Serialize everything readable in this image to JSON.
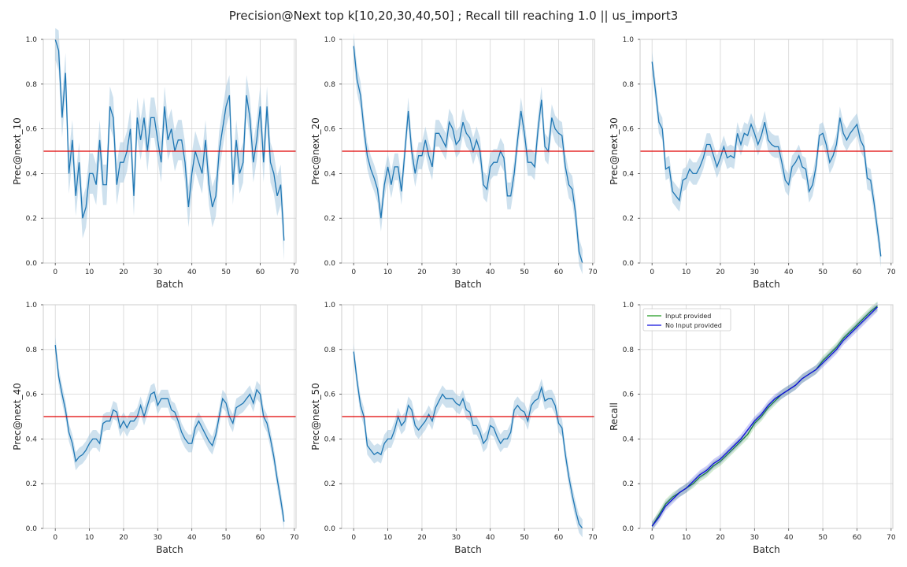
{
  "figure": {
    "title": "Precision@Next top k[10,20,30,40,50] ; Recall till reaching 1.0 || us_import3",
    "colors": {
      "line": "#1f77b4",
      "band": "#a6c8e0",
      "threshold": "#e00000",
      "grid": "#d5d5d5",
      "spine": "#cccccc",
      "recall_input": "#1f9a1f",
      "recall_noinput": "#0d0ddd"
    }
  },
  "chart_data": [
    {
      "type": "line",
      "xlabel": "Batch",
      "ylabel": "Prec@next_10",
      "xlim": [
        -3.5,
        70.5
      ],
      "ylim": [
        0,
        1.0
      ],
      "xticks": [
        0,
        10,
        20,
        30,
        40,
        50,
        60,
        70
      ],
      "xtick_labels": [
        "0",
        "10",
        "20",
        "30",
        "40",
        "50",
        "60",
        "70"
      ],
      "yticks": [
        0,
        0.2,
        0.4,
        0.6,
        0.8,
        1.0
      ],
      "ytick_labels": [
        "0.0",
        "0.2",
        "0.4",
        "0.6",
        "0.8",
        "1.0"
      ],
      "grid": true,
      "hline": 0.5,
      "series": [
        {
          "x": [
            0,
            1,
            2,
            3,
            4,
            5,
            6,
            7,
            8,
            9,
            10,
            11,
            12,
            13,
            14,
            15,
            16,
            17,
            18,
            19,
            20,
            21,
            22,
            23,
            24,
            25,
            26,
            27,
            28,
            29,
            30,
            31,
            32,
            33,
            34,
            35,
            36,
            37,
            38,
            39,
            40,
            41,
            42,
            43,
            44,
            45,
            46,
            47,
            48,
            49,
            50,
            51,
            52,
            53,
            54,
            55,
            56,
            57,
            58,
            59,
            60,
            61,
            62,
            63,
            64,
            65,
            66,
            67
          ],
          "y": [
            1.0,
            0.95,
            0.65,
            0.85,
            0.4,
            0.55,
            0.3,
            0.45,
            0.2,
            0.25,
            0.4,
            0.4,
            0.35,
            0.55,
            0.35,
            0.35,
            0.7,
            0.65,
            0.35,
            0.45,
            0.45,
            0.5,
            0.6,
            0.3,
            0.65,
            0.55,
            0.65,
            0.5,
            0.65,
            0.65,
            0.55,
            0.45,
            0.7,
            0.55,
            0.6,
            0.5,
            0.55,
            0.55,
            0.45,
            0.25,
            0.4,
            0.5,
            0.45,
            0.4,
            0.55,
            0.35,
            0.25,
            0.3,
            0.5,
            0.6,
            0.7,
            0.75,
            0.35,
            0.55,
            0.4,
            0.45,
            0.75,
            0.65,
            0.45,
            0.55,
            0.7,
            0.45,
            0.7,
            0.45,
            0.4,
            0.3,
            0.35,
            0.1
          ],
          "band": 0.09
        }
      ]
    },
    {
      "type": "line",
      "xlabel": "Batch",
      "ylabel": "Prec@next_20",
      "xlim": [
        -3.5,
        70.5
      ],
      "ylim": [
        0,
        1.0
      ],
      "xticks": [
        0,
        10,
        20,
        30,
        40,
        50,
        60,
        70
      ],
      "xtick_labels": [
        "0",
        "10",
        "20",
        "30",
        "40",
        "50",
        "60",
        "70"
      ],
      "yticks": [
        0,
        0.2,
        0.4,
        0.6,
        0.8,
        1.0
      ],
      "ytick_labels": [
        "0.0",
        "0.2",
        "0.4",
        "0.6",
        "0.8",
        "1.0"
      ],
      "grid": true,
      "hline": 0.5,
      "series": [
        {
          "x": [
            0,
            1,
            2,
            3,
            4,
            5,
            6,
            7,
            8,
            9,
            10,
            11,
            12,
            13,
            14,
            15,
            16,
            17,
            18,
            19,
            20,
            21,
            22,
            23,
            24,
            25,
            26,
            27,
            28,
            29,
            30,
            31,
            32,
            33,
            34,
            35,
            36,
            37,
            38,
            39,
            40,
            41,
            42,
            43,
            44,
            45,
            46,
            47,
            48,
            49,
            50,
            51,
            52,
            53,
            54,
            55,
            56,
            57,
            58,
            59,
            60,
            61,
            62,
            63,
            64,
            65,
            66,
            67
          ],
          "y": [
            0.97,
            0.82,
            0.75,
            0.6,
            0.48,
            0.42,
            0.38,
            0.33,
            0.2,
            0.35,
            0.43,
            0.35,
            0.43,
            0.43,
            0.32,
            0.5,
            0.68,
            0.5,
            0.4,
            0.48,
            0.48,
            0.55,
            0.48,
            0.43,
            0.58,
            0.58,
            0.55,
            0.52,
            0.63,
            0.6,
            0.53,
            0.55,
            0.63,
            0.58,
            0.56,
            0.5,
            0.55,
            0.5,
            0.35,
            0.33,
            0.43,
            0.45,
            0.45,
            0.5,
            0.47,
            0.3,
            0.3,
            0.4,
            0.55,
            0.68,
            0.58,
            0.45,
            0.45,
            0.43,
            0.6,
            0.73,
            0.52,
            0.5,
            0.65,
            0.6,
            0.58,
            0.57,
            0.43,
            0.35,
            0.33,
            0.22,
            0.05,
            0.0
          ],
          "band": 0.06
        }
      ]
    },
    {
      "type": "line",
      "xlabel": "Batch",
      "ylabel": "Prec@next_30",
      "xlim": [
        -3.5,
        70.5
      ],
      "ylim": [
        0,
        1.0
      ],
      "xticks": [
        0,
        10,
        20,
        30,
        40,
        50,
        60,
        70
      ],
      "xtick_labels": [
        "0",
        "10",
        "20",
        "30",
        "40",
        "50",
        "60",
        "70"
      ],
      "yticks": [
        0,
        0.2,
        0.4,
        0.6,
        0.8,
        1.0
      ],
      "ytick_labels": [
        "0.0",
        "0.2",
        "0.4",
        "0.6",
        "0.8",
        "1.0"
      ],
      "grid": true,
      "hline": 0.5,
      "series": [
        {
          "x": [
            0,
            1,
            2,
            3,
            4,
            5,
            6,
            7,
            8,
            9,
            10,
            11,
            12,
            13,
            14,
            15,
            16,
            17,
            18,
            19,
            20,
            21,
            22,
            23,
            24,
            25,
            26,
            27,
            28,
            29,
            30,
            31,
            32,
            33,
            34,
            35,
            36,
            37,
            38,
            39,
            40,
            41,
            42,
            43,
            44,
            45,
            46,
            47,
            48,
            49,
            50,
            51,
            52,
            53,
            54,
            55,
            56,
            57,
            58,
            59,
            60,
            61,
            62,
            63,
            64,
            65,
            66,
            67
          ],
          "y": [
            0.9,
            0.77,
            0.63,
            0.6,
            0.42,
            0.43,
            0.32,
            0.3,
            0.28,
            0.37,
            0.38,
            0.42,
            0.4,
            0.4,
            0.43,
            0.47,
            0.53,
            0.53,
            0.48,
            0.43,
            0.47,
            0.52,
            0.47,
            0.48,
            0.47,
            0.58,
            0.53,
            0.58,
            0.57,
            0.62,
            0.58,
            0.53,
            0.57,
            0.63,
            0.55,
            0.53,
            0.52,
            0.52,
            0.45,
            0.37,
            0.35,
            0.43,
            0.45,
            0.48,
            0.43,
            0.42,
            0.32,
            0.35,
            0.43,
            0.57,
            0.58,
            0.53,
            0.45,
            0.48,
            0.53,
            0.65,
            0.58,
            0.55,
            0.58,
            0.6,
            0.62,
            0.55,
            0.52,
            0.38,
            0.37,
            0.27,
            0.15,
            0.03
          ],
          "band": 0.05
        }
      ]
    },
    {
      "type": "line",
      "xlabel": "Batch",
      "ylabel": "Prec@next_40",
      "xlim": [
        -3.5,
        70.5
      ],
      "ylim": [
        0,
        1.0
      ],
      "xticks": [
        0,
        10,
        20,
        30,
        40,
        50,
        60,
        70
      ],
      "xtick_labels": [
        "0",
        "10",
        "20",
        "30",
        "40",
        "50",
        "60",
        "70"
      ],
      "yticks": [
        0,
        0.2,
        0.4,
        0.6,
        0.8,
        1.0
      ],
      "ytick_labels": [
        "0.0",
        "0.2",
        "0.4",
        "0.6",
        "0.8",
        "1.0"
      ],
      "grid": true,
      "hline": 0.5,
      "series": [
        {
          "x": [
            0,
            1,
            2,
            3,
            4,
            5,
            6,
            7,
            8,
            9,
            10,
            11,
            12,
            13,
            14,
            15,
            16,
            17,
            18,
            19,
            20,
            21,
            22,
            23,
            24,
            25,
            26,
            27,
            28,
            29,
            30,
            31,
            32,
            33,
            34,
            35,
            36,
            37,
            38,
            39,
            40,
            41,
            42,
            43,
            44,
            45,
            46,
            47,
            48,
            49,
            50,
            51,
            52,
            53,
            54,
            55,
            56,
            57,
            58,
            59,
            60,
            61,
            62,
            63,
            64,
            65,
            66,
            67
          ],
          "y": [
            0.82,
            0.68,
            0.6,
            0.53,
            0.43,
            0.38,
            0.3,
            0.32,
            0.33,
            0.35,
            0.38,
            0.4,
            0.4,
            0.38,
            0.47,
            0.48,
            0.48,
            0.53,
            0.52,
            0.45,
            0.48,
            0.45,
            0.48,
            0.48,
            0.5,
            0.55,
            0.5,
            0.55,
            0.6,
            0.61,
            0.55,
            0.58,
            0.58,
            0.58,
            0.53,
            0.52,
            0.48,
            0.43,
            0.4,
            0.38,
            0.38,
            0.45,
            0.48,
            0.45,
            0.42,
            0.39,
            0.37,
            0.42,
            0.5,
            0.58,
            0.56,
            0.5,
            0.47,
            0.54,
            0.55,
            0.56,
            0.58,
            0.6,
            0.56,
            0.62,
            0.6,
            0.5,
            0.47,
            0.4,
            0.32,
            0.22,
            0.13,
            0.03
          ],
          "band": 0.04
        }
      ]
    },
    {
      "type": "line",
      "xlabel": "Batch",
      "ylabel": "Prec@next_50",
      "xlim": [
        -3.5,
        70.5
      ],
      "ylim": [
        0,
        1.0
      ],
      "xticks": [
        0,
        10,
        20,
        30,
        40,
        50,
        60,
        70
      ],
      "xtick_labels": [
        "0",
        "10",
        "20",
        "30",
        "40",
        "50",
        "60",
        "70"
      ],
      "yticks": [
        0,
        0.2,
        0.4,
        0.6,
        0.8,
        1.0
      ],
      "ytick_labels": [
        "0.0",
        "0.2",
        "0.4",
        "0.6",
        "0.8",
        "1.0"
      ],
      "grid": true,
      "hline": 0.5,
      "series": [
        {
          "x": [
            0,
            1,
            2,
            3,
            4,
            5,
            6,
            7,
            8,
            9,
            10,
            11,
            12,
            13,
            14,
            15,
            16,
            17,
            18,
            19,
            20,
            21,
            22,
            23,
            24,
            25,
            26,
            27,
            28,
            29,
            30,
            31,
            32,
            33,
            34,
            35,
            36,
            37,
            38,
            39,
            40,
            41,
            42,
            43,
            44,
            45,
            46,
            47,
            48,
            49,
            50,
            51,
            52,
            53,
            54,
            55,
            56,
            57,
            58,
            59,
            60,
            61,
            62,
            63,
            64,
            65,
            66,
            67
          ],
          "y": [
            0.79,
            0.66,
            0.55,
            0.5,
            0.37,
            0.35,
            0.33,
            0.34,
            0.33,
            0.38,
            0.4,
            0.4,
            0.44,
            0.5,
            0.46,
            0.48,
            0.55,
            0.53,
            0.46,
            0.44,
            0.46,
            0.48,
            0.51,
            0.48,
            0.54,
            0.57,
            0.6,
            0.58,
            0.58,
            0.58,
            0.56,
            0.55,
            0.58,
            0.53,
            0.52,
            0.46,
            0.46,
            0.43,
            0.38,
            0.4,
            0.46,
            0.45,
            0.41,
            0.38,
            0.4,
            0.4,
            0.43,
            0.53,
            0.55,
            0.53,
            0.52,
            0.48,
            0.55,
            0.57,
            0.58,
            0.63,
            0.57,
            0.58,
            0.58,
            0.55,
            0.47,
            0.45,
            0.33,
            0.23,
            0.15,
            0.08,
            0.02,
            0.0
          ],
          "band": 0.04
        }
      ]
    },
    {
      "type": "line",
      "xlabel": "Batch",
      "ylabel": "Recall",
      "xlim": [
        -3.5,
        70.5
      ],
      "ylim": [
        0,
        1.0
      ],
      "xticks": [
        0,
        10,
        20,
        30,
        40,
        50,
        60,
        70
      ],
      "xtick_labels": [
        "0",
        "10",
        "20",
        "30",
        "40",
        "50",
        "60",
        "70"
      ],
      "yticks": [
        0,
        0.2,
        0.4,
        0.6,
        0.8,
        1.0
      ],
      "ytick_labels": [
        "0.0",
        "0.2",
        "0.4",
        "0.6",
        "0.8",
        "1.0"
      ],
      "grid": true,
      "legend": "top-left",
      "series": [
        {
          "name": "Input provided",
          "x": [
            0,
            2,
            4,
            6,
            8,
            10,
            12,
            14,
            16,
            18,
            20,
            22,
            24,
            26,
            28,
            30,
            32,
            34,
            36,
            38,
            40,
            42,
            44,
            46,
            48,
            50,
            52,
            54,
            56,
            58,
            60,
            62,
            64,
            66
          ],
          "y": [
            0.01,
            0.06,
            0.11,
            0.14,
            0.16,
            0.18,
            0.2,
            0.23,
            0.25,
            0.28,
            0.3,
            0.33,
            0.36,
            0.39,
            0.42,
            0.47,
            0.5,
            0.54,
            0.57,
            0.6,
            0.62,
            0.64,
            0.67,
            0.69,
            0.71,
            0.75,
            0.78,
            0.81,
            0.85,
            0.88,
            0.91,
            0.94,
            0.97,
            0.995
          ],
          "band": 0.02
        },
        {
          "name": "No Input provided",
          "x": [
            0,
            2,
            4,
            6,
            8,
            10,
            12,
            14,
            16,
            18,
            20,
            22,
            24,
            26,
            28,
            30,
            32,
            34,
            36,
            38,
            40,
            42,
            44,
            46,
            48,
            50,
            52,
            54,
            56,
            58,
            60,
            62,
            64,
            66
          ],
          "y": [
            0.01,
            0.05,
            0.1,
            0.13,
            0.16,
            0.18,
            0.21,
            0.24,
            0.26,
            0.29,
            0.31,
            0.34,
            0.37,
            0.4,
            0.44,
            0.48,
            0.51,
            0.55,
            0.58,
            0.6,
            0.62,
            0.64,
            0.67,
            0.69,
            0.71,
            0.74,
            0.77,
            0.8,
            0.84,
            0.87,
            0.9,
            0.93,
            0.96,
            0.99
          ],
          "band": 0.02
        }
      ]
    }
  ]
}
